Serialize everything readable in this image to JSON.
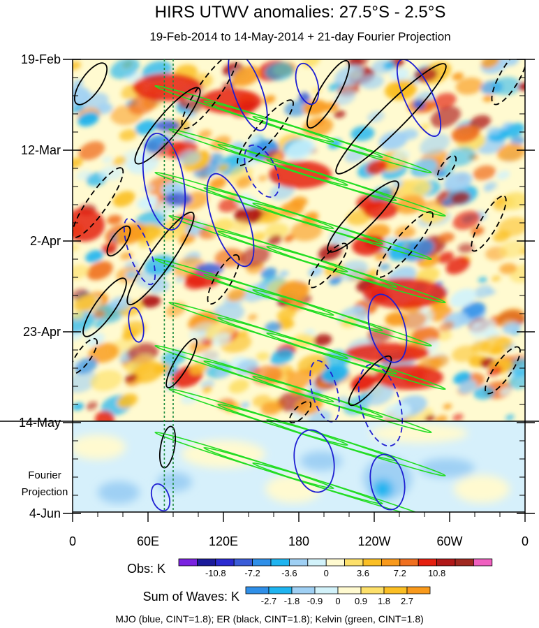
{
  "chart_data": {
    "type": "heatmap",
    "title": "HIRS UTWV anomalies: 27.5°S - 2.5°S",
    "subtitle": "19-Feb-2014 to 14-May-2014 + 21-day Fourier Projection",
    "y_tick_labels": [
      "19-Feb",
      "12-Mar",
      "2-Apr",
      "23-Apr",
      "14-May",
      "4-Jun"
    ],
    "y_projection_label": [
      "Fourier",
      "Projection"
    ],
    "x_tick_labels": [
      "0",
      "60E",
      "120E",
      "180",
      "120W",
      "60W",
      "0"
    ],
    "x_longitudes": [
      0,
      60,
      120,
      180,
      240,
      300,
      360
    ],
    "obs_end_label": "14-May",
    "obs_colorbar": {
      "label": "Obs: K",
      "ticks": [
        "-10.8",
        "-7.2",
        "-3.6",
        "0",
        "3.6",
        "7.2",
        "10.8"
      ],
      "colors": [
        "#7a22e0",
        "#1a1a9a",
        "#2a2ad0",
        "#3a5cd8",
        "#2f8fe8",
        "#1fb4f0",
        "#9fd0f4",
        "#d2f2fa",
        "#fffad0",
        "#fde06a",
        "#fbbf24",
        "#f99a1c",
        "#f07020",
        "#e52010",
        "#b01818",
        "#a02820",
        "#f060c0"
      ]
    },
    "waves_colorbar": {
      "label": "Sum of Waves: K",
      "ticks": [
        "-2.7",
        "-1.8",
        "-0.9",
        "0",
        "0.9",
        "1.8",
        "2.7"
      ],
      "colors": [
        "#2f8fe8",
        "#1fb4f0",
        "#9fd0f4",
        "#d2f2fa",
        "#fffad0",
        "#fde06a",
        "#fbbf24",
        "#f99a1c"
      ]
    },
    "legend_note": "MJO (blue, CINT=1.8); ER (black, CINT=1.8); Kelvin (green, CINT=1.8)",
    "series": [
      {
        "name": "MJO",
        "color": "#1e1ed2"
      },
      {
        "name": "ER",
        "color": "#000000"
      },
      {
        "name": "Kelvin",
        "color": "#22dd22"
      }
    ],
    "reference_lines_longitude": [
      73,
      80
    ]
  }
}
